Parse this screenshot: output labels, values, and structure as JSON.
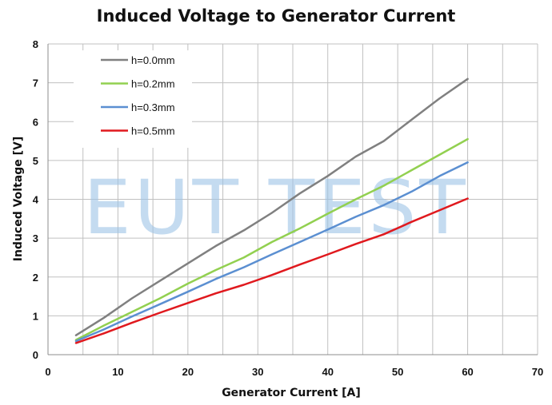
{
  "chart_data": {
    "type": "line",
    "title": "Induced Voltage to Generator Current",
    "xlabel": "Generator Current [A]",
    "ylabel": "Induced Voltage [V]",
    "xlim": [
      0,
      70
    ],
    "ylim": [
      0,
      8
    ],
    "xticks": [
      0,
      10,
      20,
      30,
      40,
      50,
      60,
      70
    ],
    "yticks": [
      0,
      1,
      2,
      3,
      4,
      5,
      6,
      7,
      8
    ],
    "grid": true,
    "legend_position": "top-left",
    "series": [
      {
        "name": "h=0.0mm",
        "color": "#808080",
        "points": [
          [
            4,
            0.5
          ],
          [
            8,
            0.95
          ],
          [
            12,
            1.45
          ],
          [
            16,
            1.9
          ],
          [
            20,
            2.35
          ],
          [
            24,
            2.8
          ],
          [
            28,
            3.2
          ],
          [
            32,
            3.65
          ],
          [
            36,
            4.15
          ],
          [
            40,
            4.6
          ],
          [
            44,
            5.1
          ],
          [
            48,
            5.5
          ],
          [
            52,
            6.05
          ],
          [
            56,
            6.6
          ],
          [
            60,
            7.1
          ]
        ]
      },
      {
        "name": "h=0.2mm",
        "color": "#92d050",
        "points": [
          [
            4,
            0.38
          ],
          [
            8,
            0.75
          ],
          [
            12,
            1.1
          ],
          [
            16,
            1.45
          ],
          [
            20,
            1.83
          ],
          [
            24,
            2.18
          ],
          [
            28,
            2.5
          ],
          [
            32,
            2.9
          ],
          [
            36,
            3.25
          ],
          [
            40,
            3.63
          ],
          [
            44,
            4.0
          ],
          [
            48,
            4.35
          ],
          [
            52,
            4.75
          ],
          [
            56,
            5.15
          ],
          [
            60,
            5.55
          ]
        ]
      },
      {
        "name": "h=0.3mm",
        "color": "#5b8fd1",
        "points": [
          [
            4,
            0.35
          ],
          [
            8,
            0.65
          ],
          [
            12,
            0.98
          ],
          [
            16,
            1.3
          ],
          [
            20,
            1.62
          ],
          [
            24,
            1.95
          ],
          [
            28,
            2.25
          ],
          [
            32,
            2.58
          ],
          [
            36,
            2.9
          ],
          [
            40,
            3.22
          ],
          [
            44,
            3.55
          ],
          [
            48,
            3.85
          ],
          [
            52,
            4.2
          ],
          [
            56,
            4.6
          ],
          [
            60,
            4.95
          ]
        ]
      },
      {
        "name": "h=0.5mm",
        "color": "#e0191e",
        "points": [
          [
            4,
            0.3
          ],
          [
            8,
            0.55
          ],
          [
            12,
            0.82
          ],
          [
            16,
            1.08
          ],
          [
            20,
            1.33
          ],
          [
            24,
            1.58
          ],
          [
            28,
            1.8
          ],
          [
            32,
            2.05
          ],
          [
            36,
            2.32
          ],
          [
            40,
            2.58
          ],
          [
            44,
            2.85
          ],
          [
            48,
            3.1
          ],
          [
            52,
            3.42
          ],
          [
            56,
            3.72
          ],
          [
            60,
            4.02
          ]
        ]
      }
    ]
  },
  "watermark": {
    "text": "EUT TEST"
  }
}
